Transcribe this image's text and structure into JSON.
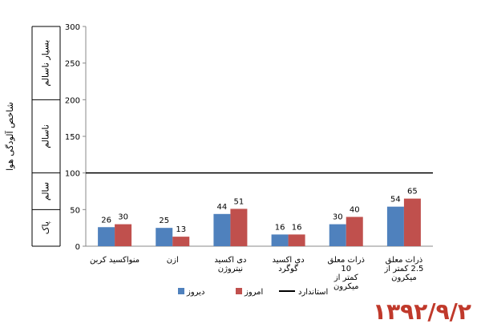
{
  "chart_data": {
    "type": "bar",
    "title": "",
    "ylabel": "شاخص آلودگی هوا",
    "ylim": [
      0,
      300
    ],
    "yticks": [
      0,
      50,
      100,
      150,
      200,
      250,
      300
    ],
    "grid": false,
    "legend_position": "bottom",
    "categories": [
      "منواکسید کربن",
      "ازن",
      "دی اکسید نیتروژن",
      "دی اکسید گوگرد",
      "ذرات معلق 10 کمتر از میکرون",
      "ذرات معلق 2.5 کمتر از میکرون"
    ],
    "category_lines": [
      [
        "منواکسید کربن"
      ],
      [
        "ازن"
      ],
      [
        "دی اکسید",
        "نیتروژن"
      ],
      [
        "دی اکسید",
        "گوگرد"
      ],
      [
        "ذرات معلق",
        "10",
        "کمتر از",
        "میکرون"
      ],
      [
        "ذرات معلق",
        "2.5 کمتر از",
        "میکرون"
      ]
    ],
    "series": [
      {
        "name": "دیروز",
        "values": [
          26,
          25,
          44,
          16,
          30,
          54
        ],
        "color": "#4f81bd"
      },
      {
        "name": "امروز",
        "values": [
          30,
          13,
          51,
          16,
          40,
          65
        ],
        "color": "#c0504d"
      }
    ],
    "reference_line": {
      "name": "استاندارد",
      "value": 100,
      "color": "#000000"
    },
    "bands": [
      {
        "label": "پاک",
        "from": 0,
        "to": 50
      },
      {
        "label": "سالم",
        "from": 50,
        "to": 100
      },
      {
        "label": "ناسالم",
        "from": 100,
        "to": 200
      },
      {
        "label": "بسیار ناسالم",
        "from": 200,
        "to": 300
      }
    ]
  },
  "date_stamp": "۱۳۹۲/۹/۲",
  "date_color": "#c0392b"
}
